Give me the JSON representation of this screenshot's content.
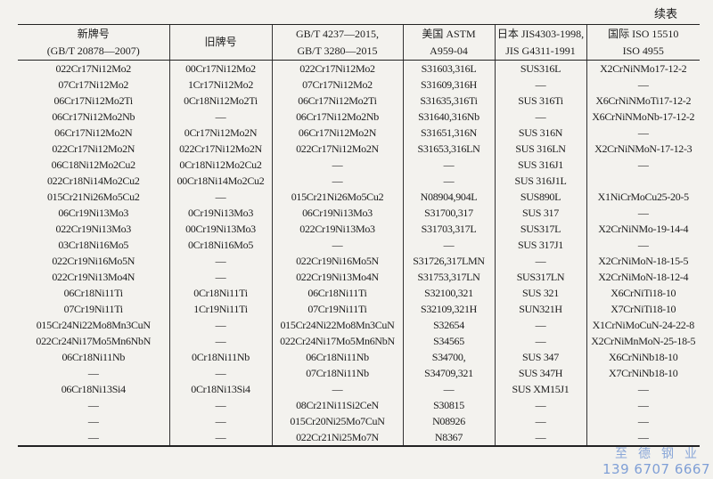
{
  "continued_label": "续表",
  "headers": [
    [
      "新牌号",
      "(GB/T 20878—2007)"
    ],
    [
      "旧牌号",
      ""
    ],
    [
      "GB/T 4237—2015,",
      "GB/T 3280—2015"
    ],
    [
      "美国 ASTM",
      "A959-04"
    ],
    [
      "日本 JIS4303-1998,",
      "JIS G4311-1991"
    ],
    [
      "国际 ISO 15510",
      "ISO 4955"
    ]
  ],
  "rows": [
    [
      "022Cr17Ni12Mo2",
      "00Cr17Ni12Mo2",
      "022Cr17Ni12Mo2",
      "S31603,316L",
      "SUS316L",
      "X2CrNiNMo17-12-2"
    ],
    [
      "07Cr17Ni12Mo2",
      "1Cr17Ni12Mo2",
      "07Cr17Ni12Mo2",
      "S31609,316H",
      "—",
      "—"
    ],
    [
      "06Cr17Ni12Mo2Ti",
      "0Cr18Ni12Mo2Ti",
      "06Cr17Ni12Mo2Ti",
      "S31635,316Ti",
      "SUS 316Ti",
      "X6CrNiNMoTi17-12-2"
    ],
    [
      "06Cr17Ni12Mo2Nb",
      "—",
      "06Cr17Ni12Mo2Nb",
      "S31640,316Nb",
      "—",
      "X6CrNiNMoNb-17-12-2"
    ],
    [
      "06Cr17Ni12Mo2N",
      "0Cr17Ni12Mo2N",
      "06Cr17Ni12Mo2N",
      "S31651,316N",
      "SUS 316N",
      "—"
    ],
    [
      "022Cr17Ni12Mo2N",
      "022Cr17Ni12Mo2N",
      "022Cr17Ni12Mo2N",
      "S31653,316LN",
      "SUS 316LN",
      "X2CrNiNMoN-17-12-3"
    ],
    [
      "06C18Ni12Mo2Cu2",
      "0Cr18Ni12Mo2Cu2",
      "—",
      "—",
      "SUS 316J1",
      "—"
    ],
    [
      "022Cr18Ni14Mo2Cu2",
      "00Cr18Ni14Mo2Cu2",
      "—",
      "—",
      "SUS 316J1L",
      ""
    ],
    [
      "015Cr21Ni26Mo5Cu2",
      "—",
      "015Cr21Ni26Mo5Cu2",
      "N08904,904L",
      "SUS890L",
      "X1NiCrMoCu25-20-5"
    ],
    [
      "06Cr19Ni13Mo3",
      "0Cr19Ni13Mo3",
      "06Cr19Ni13Mo3",
      "S31700,317",
      "SUS 317",
      "—"
    ],
    [
      "022Cr19Ni13Mo3",
      "00Cr19Ni13Mo3",
      "022Cr19Ni13Mo3",
      "S31703,317L",
      "SUS317L",
      "X2CrNiNMo-19-14-4"
    ],
    [
      "03Cr18Ni16Mo5",
      "0Cr18Ni16Mo5",
      "—",
      "—",
      "SUS 317J1",
      "—"
    ],
    [
      "022Cr19Ni16Mo5N",
      "—",
      "022Cr19Ni16Mo5N",
      "S31726,317LMN",
      "—",
      "X2CrNiMoN-18-15-5"
    ],
    [
      "022Cr19Ni13Mo4N",
      "—",
      "022Cr19Ni13Mo4N",
      "S31753,317LN",
      "SUS317LN",
      "X2CrNiMoN-18-12-4"
    ],
    [
      "06Cr18Ni11Ti",
      "0Cr18Ni11Ti",
      "06Cr18Ni11Ti",
      "S32100,321",
      "SUS 321",
      "X6CrNiTi18-10"
    ],
    [
      "07Cr19Ni11Ti",
      "1Cr19Ni11Ti",
      "07Cr19Ni11Ti",
      "S32109,321H",
      "SUN321H",
      "X7CrNiTi18-10"
    ],
    [
      "015Cr24Ni22Mo8Mn3CuN",
      "—",
      "015Cr24Ni22Mo8Mn3CuN",
      "S32654",
      "—",
      "X1CrNiMoCuN-24-22-8"
    ],
    [
      "022Cr24Ni17Mo5Mn6NbN",
      "—",
      "022Cr24Ni17Mo5Mn6NbN",
      "S34565",
      "—",
      "X2CrNiMnMoN-25-18-5"
    ],
    [
      "06Cr18Ni11Nb",
      "0Cr18Ni11Nb",
      "06Cr18Ni11Nb",
      "S34700,",
      "SUS 347",
      "X6CrNiNb18-10"
    ],
    [
      "—",
      "—",
      "07Cr18Ni11Nb",
      "S34709,321",
      "SUS 347H",
      "X7CrNiNb18-10"
    ],
    [
      "06Cr18Ni13Si4",
      "0Cr18Ni13Si4",
      "—",
      "—",
      "SUS XM15J1",
      "—"
    ],
    [
      "—",
      "—",
      "08Cr21Ni11Si2CeN",
      "S30815",
      "—",
      "—"
    ],
    [
      "—",
      "—",
      "015Cr20Ni25Mo7CuN",
      "N08926",
      "—",
      "—"
    ],
    [
      "—",
      "—",
      "022Cr21Ni25Mo7N",
      "N8367",
      "—",
      "—"
    ]
  ],
  "watermark": {
    "name": "至德钢业",
    "phone": "139 6707 6667",
    "color": "#8aa7d8"
  }
}
